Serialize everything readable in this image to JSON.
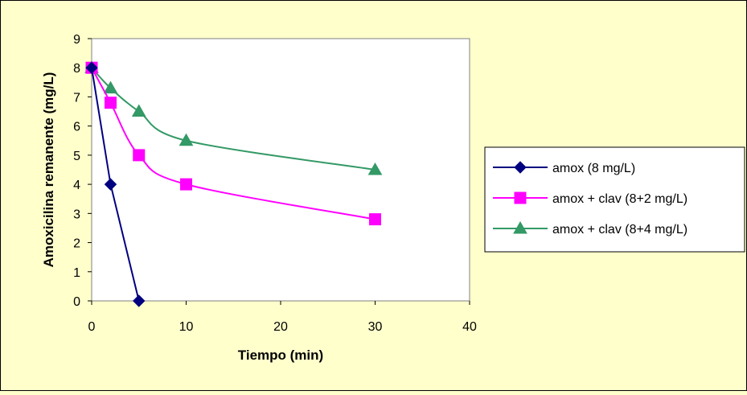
{
  "chart_data": {
    "type": "line",
    "title": "",
    "xlabel": "Tiempo (min)",
    "ylabel": "Amoxicilina remanente (mg/L)",
    "xlim": [
      0,
      40
    ],
    "ylim": [
      0,
      9
    ],
    "xticks": [
      0,
      10,
      20,
      30,
      40
    ],
    "yticks": [
      0,
      1,
      2,
      3,
      4,
      5,
      6,
      7,
      8,
      9
    ],
    "grid": false,
    "legend_position": "right",
    "background_color": "#ffffcc",
    "plot_background_color": "#ffffff",
    "series": [
      {
        "name": "amox (8 mg/L)",
        "color": "#000080",
        "marker": "diamond",
        "smooth": false,
        "x": [
          0,
          2,
          5
        ],
        "y": [
          8,
          4,
          0
        ]
      },
      {
        "name": "amox + clav (8+2 mg/L)",
        "color": "#ff00ff",
        "marker": "square",
        "smooth": true,
        "x": [
          0,
          2,
          5,
          10,
          30
        ],
        "y": [
          8,
          6.8,
          5,
          4,
          2.8
        ]
      },
      {
        "name": "amox + clav (8+4 mg/L)",
        "color": "#339966",
        "marker": "triangle",
        "smooth": true,
        "x": [
          0,
          2,
          5,
          10,
          30
        ],
        "y": [
          8,
          7.3,
          6.5,
          5.5,
          4.5
        ]
      }
    ]
  }
}
